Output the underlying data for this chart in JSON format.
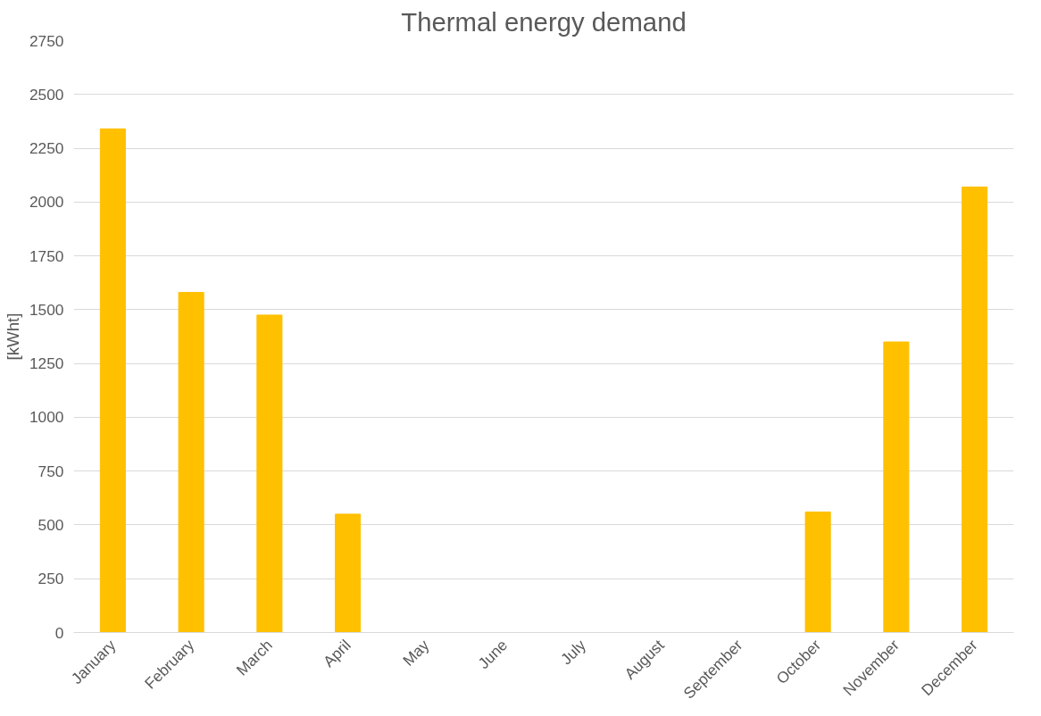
{
  "chart_data": {
    "type": "bar",
    "title": "Thermal energy demand",
    "ylabel": "[kWht]",
    "categories": [
      "January",
      "February",
      "March",
      "April",
      "May",
      "June",
      "July",
      "August",
      "September",
      "October",
      "November",
      "December"
    ],
    "values": [
      2340,
      1580,
      1475,
      550,
      0,
      0,
      0,
      0,
      0,
      560,
      1350,
      2070
    ],
    "color": "#ffc000",
    "ylim": [
      0,
      2750
    ],
    "yticks": [
      0,
      250,
      500,
      750,
      1000,
      1250,
      1500,
      1750,
      2000,
      2250,
      2500,
      2750
    ],
    "grid": "y"
  }
}
